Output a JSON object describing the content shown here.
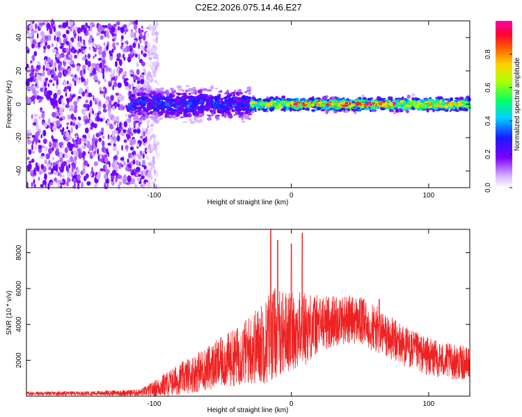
{
  "title": "C2E2.2026.075.14.46.E27",
  "colors": {
    "snr_line": "#ee2222",
    "axis": "#000000",
    "background": "#ffffff"
  },
  "chart_data": [
    {
      "type": "heatmap",
      "title": "C2E2.2026.075.14.46.E27",
      "xlabel": "Height of straight line (km)",
      "ylabel": "Frequency (Hz)",
      "xlim": [
        -193,
        130
      ],
      "ylim": [
        -50,
        50
      ],
      "x_ticks": [
        -100,
        0,
        100
      ],
      "x_tick_labels": [
        "-100",
        "0",
        "100"
      ],
      "y_ticks": [
        -40,
        -20,
        0,
        20,
        40
      ],
      "y_tick_labels": [
        "-40",
        "-20",
        "0",
        "20",
        "40"
      ],
      "colorbar": {
        "label": "Normalized spectral amplitude",
        "range": [
          0,
          1
        ],
        "ticks": [
          0.0,
          0.2,
          0.4,
          0.6,
          0.8
        ],
        "tick_labels": [
          "0.0",
          "0.2",
          "0.4",
          "0.6",
          "0.8"
        ],
        "colormap": "rainbow-white-to-magenta"
      },
      "regions": [
        {
          "x_range": [
            -193,
            -105
          ],
          "freq_range": [
            -50,
            50
          ],
          "amplitude": 0.15,
          "description": "broadband noise"
        },
        {
          "x_range": [
            -118,
            -30
          ],
          "freq_center": 0,
          "freq_halfwidth": 8,
          "amplitude": 0.3
        },
        {
          "x_range": [
            -30,
            130
          ],
          "freq_center": 0,
          "freq_halfwidth": 3,
          "amplitude": 0.7
        },
        {
          "x_range": [
            0,
            75
          ],
          "freq_center": 0,
          "freq_halfwidth": 1,
          "amplitude": 0.95
        }
      ]
    },
    {
      "type": "line",
      "xlabel": "Height of straight line (km)",
      "ylabel": "SNR (10 * v/v)",
      "xlim": [
        -193,
        130
      ],
      "ylim": [
        0,
        9300
      ],
      "x_ticks": [
        -100,
        0,
        100
      ],
      "x_tick_labels": [
        "-100",
        "0",
        "100"
      ],
      "y_ticks": [
        2000,
        4000,
        6000,
        8000
      ],
      "y_tick_labels": [
        "2000",
        "4000",
        "6000",
        "8000"
      ],
      "series": [
        {
          "name": "SNR",
          "envelope_x": [
            -193,
            -150,
            -110,
            -100,
            -90,
            -80,
            -70,
            -60,
            -50,
            -40,
            -30,
            -20,
            -15,
            -10,
            0,
            10,
            20,
            30,
            40,
            50,
            60,
            70,
            80,
            90,
            100,
            110,
            120,
            130
          ],
          "envelope_mean": [
            150,
            160,
            200,
            400,
            700,
            1000,
            1300,
            1600,
            1900,
            2200,
            2600,
            3000,
            3400,
            3600,
            3600,
            3800,
            4000,
            4200,
            4300,
            4200,
            3800,
            3300,
            2900,
            2500,
            2200,
            2000,
            1900,
            1800
          ],
          "envelope_spread": [
            120,
            120,
            200,
            500,
            800,
            1000,
            1200,
            1400,
            1600,
            1800,
            2200,
            2600,
            3000,
            2800,
            2400,
            2300,
            1800,
            1600,
            1500,
            1500,
            1500,
            1400,
            1300,
            1200,
            1200,
            1100,
            1100,
            1000
          ],
          "peaks": [
            {
              "x": -15,
              "y": 9300
            },
            {
              "x": -10,
              "y": 8700
            },
            {
              "x": 8,
              "y": 9100
            },
            {
              "x": 0,
              "y": 8500
            },
            {
              "x": 64,
              "y": 5400
            }
          ]
        }
      ]
    }
  ]
}
